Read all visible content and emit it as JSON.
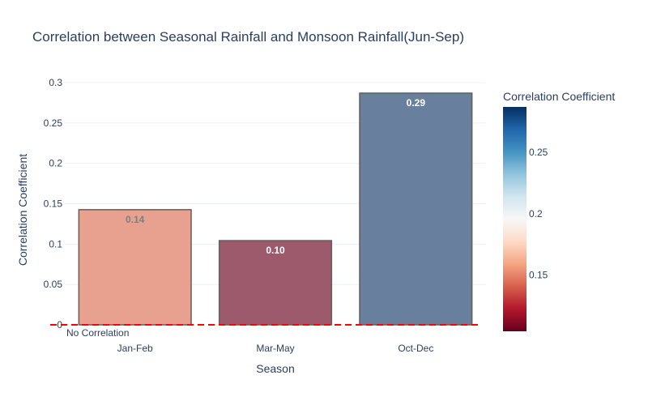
{
  "chart_data": {
    "type": "bar",
    "title": "Correlation between Seasonal Rainfall and Monsoon Rainfall(Jun-Sep)",
    "xlabel": "Season",
    "ylabel": "Correlation Coefficient",
    "categories": [
      "Jan-Feb",
      "Mar-May",
      "Oct-Dec"
    ],
    "values": [
      0.1426,
      0.1043,
      0.287
    ],
    "data_labels": [
      "0.14",
      "0.10",
      "0.29"
    ],
    "ylim": [
      0,
      0.3
    ],
    "yticks": [
      0,
      0.05,
      0.1,
      0.15,
      0.2,
      0.25,
      0.3
    ],
    "ytick_labels": [
      "0",
      "0.05",
      "0.1",
      "0.15",
      "0.2",
      "0.25",
      "0.3"
    ],
    "grid": true,
    "reference_line": {
      "y": 0,
      "label": "No Correlation",
      "color": "#ff0000",
      "style": "dashed"
    },
    "bar_colors": [
      "#e8a08f",
      "#9c5a6c",
      "#687f9d"
    ],
    "label_colors": [
      "#7f7f7f",
      "#ffffff",
      "#ffffff"
    ],
    "colorbar": {
      "title": "Correlation Coefficient",
      "range": [
        0.1043,
        0.287
      ],
      "tick_values": [
        0.15,
        0.2,
        0.25
      ],
      "tick_labels": [
        "0.15",
        "0.2",
        "0.25"
      ],
      "colorscale": [
        "#67001f",
        "#b2182b",
        "#d6604d",
        "#f4a582",
        "#fddbc7",
        "#f7f7f7",
        "#d1e5f0",
        "#92c5de",
        "#4393c3",
        "#2166ac",
        "#053061"
      ]
    }
  }
}
